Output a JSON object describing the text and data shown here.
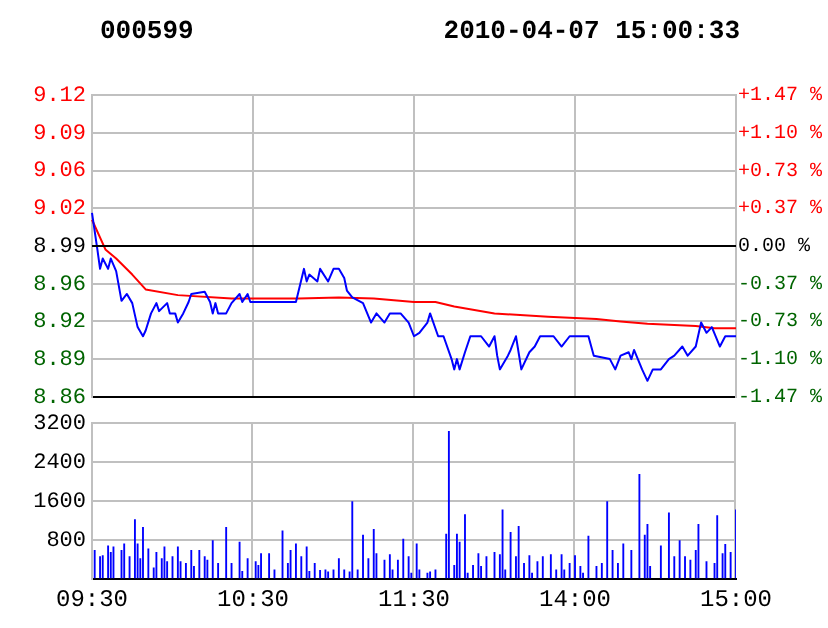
{
  "chart_data": [
    {
      "type": "line",
      "title": "000599",
      "subtitle": "2010-04-07 15:00:33",
      "tick_labels": "y",
      "categories": [
        null,
        null,
        null,
        null,
        null,
        null,
        null,
        null,
        null,
        null,
        null,
        null,
        null,
        null,
        null,
        null,
        null,
        null,
        null,
        null,
        null,
        null,
        null,
        null,
        null,
        null,
        null,
        null,
        null,
        null,
        null,
        null,
        null,
        null,
        null,
        null,
        null,
        null,
        null,
        null,
        null,
        null,
        null,
        null,
        null,
        null,
        null,
        null,
        null,
        null,
        null,
        null,
        null,
        null,
        null,
        null,
        null,
        null,
        null,
        null,
        null,
        null,
        null,
        null,
        null,
        null,
        null,
        null,
        null,
        null,
        null,
        null,
        null,
        null,
        null,
        null,
        null,
        null,
        null,
        null,
        null,
        null,
        null,
        null,
        null,
        null,
        null,
        null,
        null,
        null,
        null,
        null,
        null,
        null,
        null,
        null,
        null,
        null,
        null,
        null,
        null,
        null,
        null,
        null,
        null,
        null,
        null,
        null,
        null,
        null,
        null,
        null,
        null,
        null,
        null,
        null,
        null,
        null,
        null,
        null,
        null,
        null,
        null,
        null,
        null,
        null,
        null,
        null,
        null,
        null,
        null,
        null,
        null,
        null,
        null,
        null,
        null,
        null,
        null,
        null,
        null,
        null,
        null,
        null,
        null,
        null,
        null,
        null,
        null,
        null,
        null,
        null,
        null,
        null,
        null,
        null,
        null,
        null,
        null,
        null,
        null,
        null,
        null,
        null,
        null,
        null,
        null,
        null,
        null,
        null,
        null,
        null,
        null,
        null,
        null,
        null,
        null,
        null,
        null,
        null,
        null,
        null,
        null,
        null,
        null,
        null,
        null,
        null,
        null,
        null,
        null,
        null,
        null,
        null,
        null,
        null,
        null,
        null,
        null,
        null,
        null,
        null,
        null,
        null,
        null,
        null,
        null,
        null,
        null,
        null,
        null,
        null,
        null,
        null,
        null,
        null,
        null,
        null,
        null,
        null,
        null,
        null,
        null,
        null,
        null,
        null,
        null,
        null,
        null,
        null,
        null,
        null,
        null,
        null,
        null,
        null,
        null,
        null,
        null,
        null,
        null
      ],
      "ylim": [
        8.858,
        9.122
      ],
      "yticks": [
        {
          "value": 8.858,
          "label": "8.86"
        },
        {
          "value": 8.891,
          "label": "8.89"
        },
        {
          "value": 8.924,
          "label": "8.92"
        },
        {
          "value": 8.957,
          "label": "8.96"
        },
        {
          "value": 8.99,
          "label": "8.99"
        },
        {
          "value": 9.023,
          "label": "9.02"
        },
        {
          "value": 9.056,
          "label": "9.06"
        },
        {
          "value": 9.089,
          "label": "9.09"
        },
        {
          "value": 9.122,
          "label": "9.12"
        }
      ],
      "y2lim": [
        -1.47,
        1.47
      ],
      "y2ticks": [
        {
          "value": -1.47,
          "label": "-1.47 %"
        },
        {
          "value": -1.1,
          "label": "-1.10 %"
        },
        {
          "value": -0.73,
          "label": "-0.73 %"
        },
        {
          "value": -0.37,
          "label": "-0.37 %"
        },
        {
          "value": 0,
          "label": "0.00 %"
        },
        {
          "value": 0.37,
          "label": "+0.37 %"
        },
        {
          "value": 0.73,
          "label": "+0.73 %"
        },
        {
          "value": 1.1,
          "label": "+1.10 %"
        },
        {
          "value": 1.47,
          "label": "+1.47 %"
        }
      ],
      "grid": true,
      "ref_lines": [
        {
          "axis": "y",
          "value": 8.99,
          "color": "#000000"
        }
      ],
      "series": [
        {
          "color": "#0000ff",
          "values": [
            9.019,
            null,
            8.987,
            8.97,
            8.979,
            null,
            8.97,
            8.979,
            null,
            8.968,
            null,
            8.942,
            null,
            8.948,
            null,
            8.94,
            null,
            8.919,
            null,
            8.911,
            8.916,
            null,
            8.931,
            null,
            8.94,
            8.933,
            null,
            null,
            8.94,
            8.931,
            null,
            8.931,
            8.923,
            null,
            8.931,
            null,
            8.941,
            8.948,
            null,
            null,
            null,
            null,
            8.95,
            null,
            8.941,
            8.931,
            8.94,
            8.931,
            null,
            null,
            8.931,
            null,
            8.94,
            null,
            null,
            8.948,
            8.941,
            null,
            8.948,
            8.941,
            null,
            null,
            null,
            null,
            null,
            null,
            null,
            null,
            null,
            null,
            null,
            null,
            null,
            null,
            null,
            null,
            8.941,
            null,
            null,
            8.97,
            8.959,
            8.965,
            null,
            null,
            8.959,
            8.97,
            null,
            null,
            8.959,
            null,
            8.97,
            null,
            8.97,
            null,
            8.962,
            8.951,
            null,
            8.945,
            null,
            null,
            null,
            8.94,
            null,
            null,
            8.923,
            null,
            8.931,
            null,
            null,
            8.923,
            null,
            8.931,
            null,
            null,
            null,
            8.931,
            null,
            null,
            8.923,
            null,
            8.911,
            null,
            8.914,
            null,
            null,
            8.923,
            8.931,
            null,
            null,
            8.911,
            null,
            8.911,
            null,
            null,
            8.891,
            8.882,
            8.891,
            8.882,
            null,
            8.897,
            null,
            8.911,
            null,
            null,
            null,
            8.911,
            null,
            null,
            8.902,
            null,
            8.911,
            8.894,
            8.882,
            null,
            null,
            8.894,
            8.899,
            null,
            8.911,
            null,
            8.882,
            null,
            null,
            8.897,
            null,
            8.902,
            null,
            8.911,
            null,
            null,
            null,
            null,
            8.911,
            null,
            null,
            8.902,
            null,
            null,
            8.911,
            null,
            null,
            null,
            null,
            null,
            null,
            8.911,
            null,
            8.894,
            null,
            null,
            null,
            null,
            null,
            8.891,
            null,
            8.882,
            null,
            8.894,
            null,
            null,
            8.897,
            8.891,
            8.899,
            null,
            null,
            8.882,
            null,
            8.872,
            null,
            8.882,
            null,
            null,
            8.882,
            null,
            null,
            8.891,
            null,
            8.894,
            null,
            null,
            8.902,
            null,
            8.894,
            null,
            null,
            8.902,
            null,
            8.923,
            null,
            8.914,
            null,
            8.919,
            null,
            null,
            8.902,
            null,
            8.911,
            null,
            null,
            null,
            8.911
          ]
        },
        {
          "color": "#ff0000",
          "values": [
            9.013,
            null,
            null,
            null,
            null,
            8.987,
            null,
            null,
            null,
            8.979,
            null,
            null,
            null,
            null,
            null,
            8.965,
            null,
            null,
            null,
            null,
            8.952,
            null,
            null,
            null,
            null,
            null,
            null,
            null,
            null,
            null,
            null,
            null,
            8.947,
            null,
            null,
            null,
            null,
            null,
            null,
            null,
            null,
            null,
            null,
            null,
            null,
            null,
            null,
            null,
            null,
            null,
            null,
            null,
            8.944,
            null,
            null,
            null,
            null,
            null,
            null,
            null,
            null,
            null,
            null,
            null,
            null,
            null,
            null,
            null,
            null,
            null,
            null,
            null,
            null,
            null,
            null,
            null,
            null,
            8.944,
            null,
            null,
            null,
            null,
            null,
            null,
            null,
            null,
            null,
            null,
            null,
            null,
            null,
            null,
            8.945,
            null,
            null,
            null,
            null,
            null,
            null,
            null,
            null,
            null,
            null,
            null,
            null,
            8.944,
            null,
            null,
            null,
            null,
            null,
            null,
            null,
            null,
            null,
            null,
            null,
            null,
            null,
            null,
            8.941,
            null,
            null,
            null,
            null,
            null,
            null,
            null,
            8.941,
            null,
            null,
            null,
            null,
            null,
            null,
            8.937,
            null,
            null,
            null,
            null,
            null,
            null,
            null,
            null,
            null,
            null,
            null,
            null,
            null,
            null,
            8.931,
            null,
            null,
            null,
            null,
            null,
            null,
            null,
            null,
            null,
            null,
            null,
            null,
            null,
            null,
            null,
            null,
            null,
            null,
            null,
            8.928,
            null,
            null,
            null,
            null,
            null,
            null,
            null,
            null,
            null,
            null,
            null,
            null,
            null,
            null,
            null,
            null,
            null,
            8.926,
            null,
            null,
            null,
            null,
            null,
            null,
            null,
            null,
            8.924,
            null,
            null,
            null,
            null,
            null,
            null,
            null,
            null,
            null,
            8.922,
            null,
            null,
            null,
            null,
            null,
            null,
            null,
            null,
            null,
            null,
            null,
            null,
            null,
            null,
            null,
            null,
            null,
            8.92,
            null,
            null,
            null,
            null,
            null,
            null,
            8.918,
            null,
            null,
            null,
            null,
            null,
            null,
            null,
            8.918
          ]
        }
      ]
    },
    {
      "type": "bar",
      "color": "#0000ff",
      "categories": [
        "09:30",
        null,
        null,
        null,
        null,
        null,
        null,
        null,
        null,
        null,
        null,
        null,
        null,
        null,
        null,
        null,
        null,
        null,
        null,
        null,
        null,
        null,
        null,
        null,
        null,
        null,
        null,
        null,
        null,
        null,
        null,
        null,
        null,
        null,
        null,
        null,
        null,
        null,
        null,
        null,
        null,
        null,
        null,
        null,
        null,
        null,
        null,
        null,
        null,
        null,
        null,
        null,
        null,
        null,
        null,
        null,
        null,
        null,
        null,
        null,
        "10:30",
        null,
        null,
        null,
        null,
        null,
        null,
        null,
        null,
        null,
        null,
        null,
        null,
        null,
        null,
        null,
        null,
        null,
        null,
        null,
        null,
        null,
        null,
        null,
        null,
        null,
        null,
        null,
        null,
        null,
        null,
        null,
        null,
        null,
        null,
        null,
        null,
        null,
        null,
        null,
        null,
        null,
        null,
        null,
        null,
        null,
        null,
        null,
        null,
        null,
        null,
        null,
        null,
        null,
        null,
        null,
        null,
        null,
        null,
        null,
        "11:30",
        null,
        null,
        null,
        null,
        null,
        null,
        null,
        null,
        null,
        null,
        null,
        null,
        null,
        null,
        null,
        null,
        null,
        null,
        null,
        null,
        null,
        null,
        null,
        null,
        null,
        null,
        null,
        null,
        null,
        null,
        null,
        null,
        null,
        null,
        null,
        null,
        null,
        null,
        null,
        null,
        null,
        null,
        null,
        null,
        null,
        null,
        null,
        null,
        null,
        null,
        null,
        null,
        null,
        null,
        null,
        null,
        null,
        null,
        null,
        "14:00",
        null,
        null,
        null,
        null,
        null,
        null,
        null,
        null,
        null,
        null,
        null,
        null,
        null,
        null,
        null,
        null,
        null,
        null,
        null,
        null,
        null,
        null,
        null,
        null,
        null,
        null,
        null,
        null,
        null,
        null,
        null,
        null,
        null,
        null,
        null,
        null,
        null,
        null,
        null,
        null,
        null,
        null,
        null,
        null,
        null,
        null,
        null,
        null,
        null,
        null,
        null,
        null,
        null,
        null,
        null,
        null,
        null,
        null,
        null,
        "15:00"
      ],
      "ylim": [
        0,
        3200
      ],
      "yticks": [
        {
          "value": 0,
          "label": null
        },
        800,
        1600,
        2400,
        3200
      ],
      "grid": true,
      "values": [
        null,
        600,
        null,
        470,
        490,
        null,
        690,
        560,
        670,
        null,
        null,
        600,
        730,
        null,
        470,
        null,
        1230,
        730,
        430,
        1070,
        null,
        630,
        null,
        240,
        560,
        null,
        430,
        670,
        370,
        null,
        470,
        null,
        670,
        370,
        null,
        330,
        null,
        600,
        270,
        null,
        600,
        null,
        470,
        400,
        null,
        800,
        null,
        330,
        null,
        null,
        1070,
        null,
        330,
        null,
        null,
        770,
        170,
        null,
        430,
        null,
        null,
        370,
        290,
        530,
        null,
        null,
        530,
        null,
        200,
        null,
        null,
        1000,
        null,
        330,
        600,
        null,
        730,
        null,
        470,
        null,
        670,
        170,
        null,
        330,
        null,
        190,
        null,
        200,
        160,
        null,
        200,
        null,
        430,
        null,
        200,
        null,
        160,
        1600,
        null,
        200,
        null,
        910,
        null,
        430,
        null,
        1030,
        530,
        null,
        null,
        400,
        null,
        510,
        200,
        null,
        400,
        null,
        830,
        null,
        470,
        130,
        null,
        730,
        200,
        null,
        null,
        130,
        160,
        null,
        200,
        null,
        null,
        null,
        930,
        3040,
        null,
        290,
        930,
        770,
        null,
        1330,
        130,
        null,
        290,
        null,
        530,
        270,
        null,
        470,
        null,
        null,
        560,
        null,
        510,
        1430,
        200,
        null,
        970,
        null,
        470,
        1090,
        null,
        330,
        null,
        490,
        130,
        null,
        370,
        null,
        470,
        null,
        null,
        510,
        null,
        200,
        null,
        510,
        200,
        null,
        330,
        null,
        490,
        null,
        270,
        130,
        null,
        890,
        null,
        null,
        270,
        null,
        330,
        null,
        1600,
        null,
        600,
        null,
        330,
        null,
        730,
        null,
        null,
        600,
        null,
        null,
        2160,
        null,
        910,
        1130,
        270,
        null,
        null,
        null,
        690,
        null,
        null,
        1370,
        null,
        470,
        null,
        800,
        null,
        470,
        null,
        400,
        null,
        600,
        1130,
        null,
        null,
        370,
        null,
        null,
        330,
        1310,
        null,
        530,
        720,
        null,
        560,
        null,
        1430
      ]
    }
  ]
}
